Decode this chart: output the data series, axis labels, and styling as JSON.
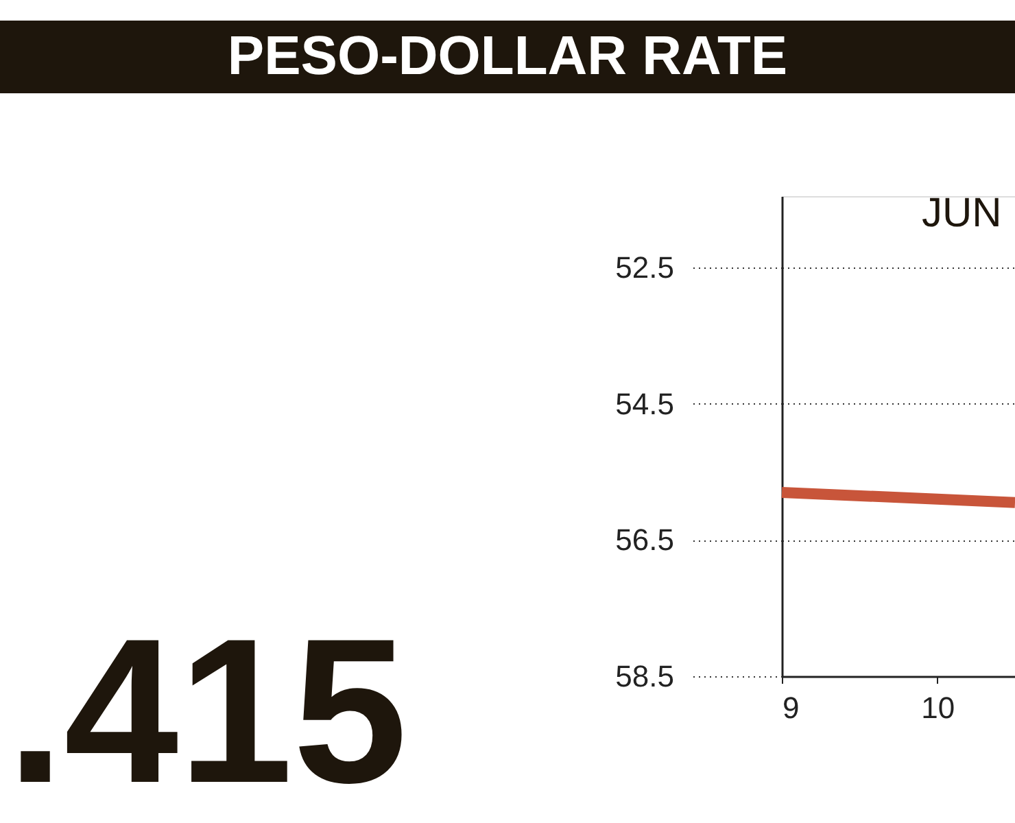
{
  "chart_data": {
    "type": "line",
    "title": "PESO-DOLLAR RATE",
    "annotations": [
      ".415",
      "JUN"
    ],
    "x": [
      9,
      10,
      10.5
    ],
    "series": [
      {
        "color": "#c8553a",
        "values": [
          55.8,
          55.9,
          55.95
        ]
      }
    ],
    "xlim": [
      9,
      10.5
    ],
    "xticks": [
      9,
      10
    ],
    "ylim": [
      58.5,
      51.45
    ],
    "yticks": [
      52.5,
      54.5,
      56.5,
      58.5
    ],
    "grid": "y"
  }
}
